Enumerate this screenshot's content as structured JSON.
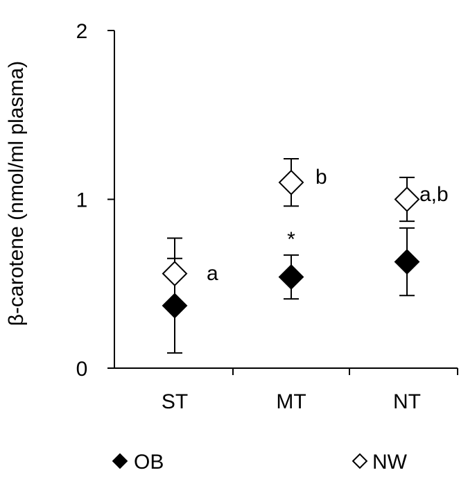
{
  "chart_data": {
    "type": "scatter",
    "ylabel": "β-carotene  (nmol/ml plasma)",
    "ylim": [
      0,
      2
    ],
    "yticks": [
      "0",
      "1",
      "2"
    ],
    "ytick_values": [
      0,
      1,
      2
    ],
    "categories": [
      "ST",
      "MT",
      "NT"
    ],
    "grid": false,
    "legend_position": "bottom",
    "series": [
      {
        "name": "OB",
        "marker": "filled-diamond",
        "color": "#000000",
        "values": [
          0.37,
          0.54,
          0.63
        ],
        "error": [
          0.28,
          0.13,
          0.2
        ]
      },
      {
        "name": "NW",
        "marker": "open-diamond",
        "color": "#000000",
        "values": [
          0.56,
          1.1,
          1.0
        ],
        "error": [
          0.21,
          0.14,
          0.13
        ]
      }
    ],
    "annotations": [
      {
        "category": "ST",
        "text": "a"
      },
      {
        "category": "MT",
        "text": "b"
      },
      {
        "category": "NT",
        "text": "a,b"
      },
      {
        "category": "MT",
        "text": "*"
      }
    ]
  }
}
